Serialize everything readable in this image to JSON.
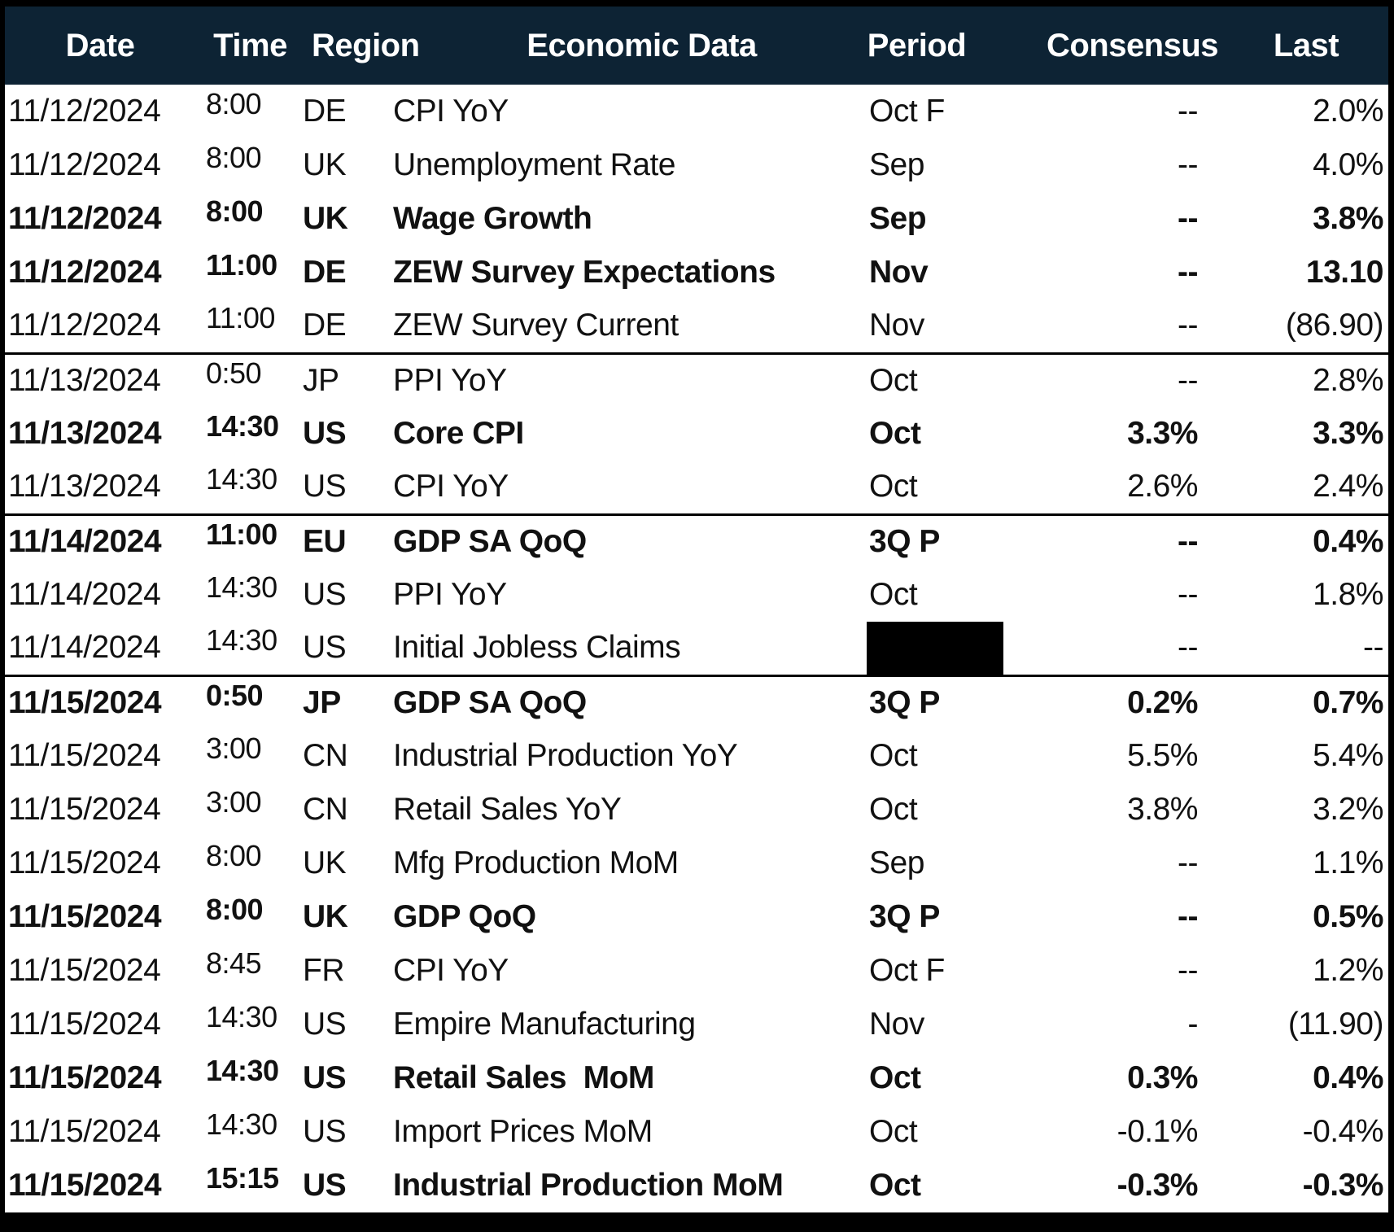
{
  "colors": {
    "header_bg": "#0d2334",
    "header_text": "#ffffff",
    "row_text": "#111111",
    "border": "#000000"
  },
  "table": {
    "columns": [
      {
        "key": "date",
        "label": "Date"
      },
      {
        "key": "time",
        "label": "Time"
      },
      {
        "key": "region",
        "label": "Region"
      },
      {
        "key": "economic_data",
        "label": "Economic Data"
      },
      {
        "key": "period",
        "label": "Period"
      },
      {
        "key": "consensus",
        "label": "Consensus"
      },
      {
        "key": "last",
        "label": "Last"
      }
    ],
    "rows": [
      {
        "date": "11/12/2024",
        "time": "8:00",
        "region": "DE",
        "economic_data": "CPI YoY",
        "period": "Oct F",
        "consensus": "--",
        "last": "2.0%",
        "emphasis": false,
        "period_redacted": false,
        "group_end": false
      },
      {
        "date": "11/12/2024",
        "time": "8:00",
        "region": "UK",
        "economic_data": "Unemployment Rate",
        "period": "Sep",
        "consensus": "--",
        "last": "4.0%",
        "emphasis": false,
        "period_redacted": false,
        "group_end": false
      },
      {
        "date": "11/12/2024",
        "time": "8:00",
        "region": "UK",
        "economic_data": "Wage Growth",
        "period": "Sep",
        "consensus": "--",
        "last": "3.8%",
        "emphasis": true,
        "period_redacted": false,
        "group_end": false
      },
      {
        "date": "11/12/2024",
        "time": "11:00",
        "region": "DE",
        "economic_data": "ZEW Survey Expectations",
        "period": "Nov",
        "consensus": "--",
        "last": "13.10",
        "emphasis": true,
        "period_redacted": false,
        "group_end": false
      },
      {
        "date": "11/12/2024",
        "time": "11:00",
        "region": "DE",
        "economic_data": "ZEW Survey Current",
        "period": "Nov",
        "consensus": "--",
        "last": "(86.90)",
        "emphasis": false,
        "period_redacted": false,
        "group_end": true
      },
      {
        "date": "11/13/2024",
        "time": "0:50",
        "region": "JP",
        "economic_data": "PPI YoY",
        "period": "Oct",
        "consensus": "--",
        "last": "2.8%",
        "emphasis": false,
        "period_redacted": false,
        "group_end": false
      },
      {
        "date": "11/13/2024",
        "time": "14:30",
        "region": "US",
        "economic_data": "Core CPI",
        "period": "Oct",
        "consensus": "3.3%",
        "last": "3.3%",
        "emphasis": true,
        "period_redacted": false,
        "group_end": false
      },
      {
        "date": "11/13/2024",
        "time": "14:30",
        "region": "US",
        "economic_data": "CPI YoY",
        "period": "Oct",
        "consensus": "2.6%",
        "last": "2.4%",
        "emphasis": false,
        "period_redacted": false,
        "group_end": true
      },
      {
        "date": "11/14/2024",
        "time": "11:00",
        "region": "EU",
        "economic_data": "GDP SA QoQ",
        "period": "3Q P",
        "consensus": "--",
        "last": "0.4%",
        "emphasis": true,
        "period_redacted": false,
        "group_end": false
      },
      {
        "date": "11/14/2024",
        "time": "14:30",
        "region": "US",
        "economic_data": "PPI YoY",
        "period": "Oct",
        "consensus": "--",
        "last": "1.8%",
        "emphasis": false,
        "period_redacted": false,
        "group_end": false
      },
      {
        "date": "11/14/2024",
        "time": "14:30",
        "region": "US",
        "economic_data": "Initial Jobless Claims",
        "period": "",
        "consensus": "--",
        "last": "--",
        "emphasis": false,
        "period_redacted": true,
        "group_end": true
      },
      {
        "date": "11/15/2024",
        "time": "0:50",
        "region": "JP",
        "economic_data": "GDP SA QoQ",
        "period": "3Q P",
        "consensus": "0.2%",
        "last": "0.7%",
        "emphasis": true,
        "period_redacted": false,
        "group_end": false
      },
      {
        "date": "11/15/2024",
        "time": "3:00",
        "region": "CN",
        "economic_data": "Industrial Production YoY",
        "period": "Oct",
        "consensus": "5.5%",
        "last": "5.4%",
        "emphasis": false,
        "period_redacted": false,
        "group_end": false
      },
      {
        "date": "11/15/2024",
        "time": "3:00",
        "region": "CN",
        "economic_data": "Retail Sales YoY",
        "period": "Oct",
        "consensus": "3.8%",
        "last": "3.2%",
        "emphasis": false,
        "period_redacted": false,
        "group_end": false
      },
      {
        "date": "11/15/2024",
        "time": "8:00",
        "region": "UK",
        "economic_data": "Mfg Production MoM",
        "period": "Sep",
        "consensus": "--",
        "last": "1.1%",
        "emphasis": false,
        "period_redacted": false,
        "group_end": false
      },
      {
        "date": "11/15/2024",
        "time": "8:00",
        "region": "UK",
        "economic_data": "GDP QoQ",
        "period": "3Q P",
        "consensus": "--",
        "last": "0.5%",
        "emphasis": true,
        "period_redacted": false,
        "group_end": false
      },
      {
        "date": "11/15/2024",
        "time": "8:45",
        "region": "FR",
        "economic_data": "CPI YoY",
        "period": "Oct F",
        "consensus": "--",
        "last": "1.2%",
        "emphasis": false,
        "period_redacted": false,
        "group_end": false
      },
      {
        "date": "11/15/2024",
        "time": "14:30",
        "region": "US",
        "economic_data": "Empire Manufacturing",
        "period": "Nov",
        "consensus": "-",
        "last": "(11.90)",
        "emphasis": false,
        "period_redacted": false,
        "group_end": false
      },
      {
        "date": "11/15/2024",
        "time": "14:30",
        "region": "US",
        "economic_data": "Retail Sales  MoM",
        "period": "Oct",
        "consensus": "0.3%",
        "last": "0.4%",
        "emphasis": true,
        "period_redacted": false,
        "group_end": false
      },
      {
        "date": "11/15/2024",
        "time": "14:30",
        "region": "US",
        "economic_data": "Import Prices MoM",
        "period": "Oct",
        "consensus": "-0.1%",
        "last": "-0.4%",
        "emphasis": false,
        "period_redacted": false,
        "group_end": false
      },
      {
        "date": "11/15/2024",
        "time": "15:15",
        "region": "US",
        "economic_data": "Industrial Production MoM",
        "period": "Oct",
        "consensus": "-0.3%",
        "last": "-0.3%",
        "emphasis": true,
        "period_redacted": false,
        "group_end": false
      }
    ]
  }
}
